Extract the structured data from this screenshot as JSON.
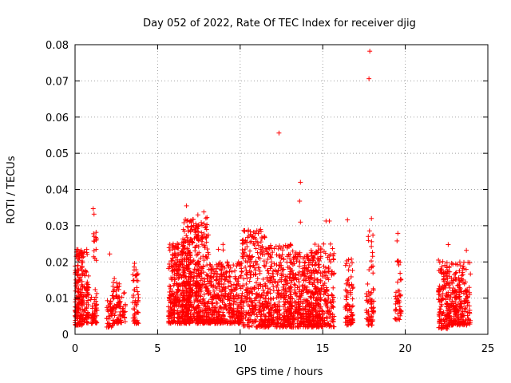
{
  "chart_data": {
    "type": "scatter",
    "title": "Day 052 of 2022, Rate Of TEC Index for receiver djig",
    "xlabel": "GPS time / hours",
    "ylabel": "ROTI / TECUs",
    "xlim": [
      0,
      25
    ],
    "ylim": [
      0,
      0.08
    ],
    "xticks": [
      "0",
      "5",
      "10",
      "15",
      "20",
      "25"
    ],
    "yticks": [
      "0",
      "0.01",
      "0.02",
      "0.03",
      "0.04",
      "0.05",
      "0.06",
      "0.07",
      "0.08"
    ],
    "grid": true,
    "marker": "+",
    "colors": {
      "series": "#ff0000",
      "grid": "#a0a0a0"
    },
    "outliers": [
      {
        "x": 17.85,
        "y": 0.0782
      },
      {
        "x": 17.8,
        "y": 0.0706
      },
      {
        "x": 12.35,
        "y": 0.0556
      },
      {
        "x": 13.65,
        "y": 0.042
      },
      {
        "x": 13.6,
        "y": 0.0368
      },
      {
        "x": 13.65,
        "y": 0.031
      },
      {
        "x": 6.75,
        "y": 0.0355
      },
      {
        "x": 1.1,
        "y": 0.0347
      },
      {
        "x": 1.15,
        "y": 0.0332
      },
      {
        "x": 7.8,
        "y": 0.0338
      },
      {
        "x": 16.5,
        "y": 0.0316
      },
      {
        "x": 15.2,
        "y": 0.0313
      },
      {
        "x": 15.4,
        "y": 0.0313
      },
      {
        "x": 17.95,
        "y": 0.032
      },
      {
        "x": 10.5,
        "y": 0.0288
      },
      {
        "x": 19.55,
        "y": 0.0279
      },
      {
        "x": 19.5,
        "y": 0.0258
      },
      {
        "x": 22.6,
        "y": 0.0248
      },
      {
        "x": 1.3,
        "y": 0.0264
      },
      {
        "x": 7.3,
        "y": 0.0293
      },
      {
        "x": 3.6,
        "y": 0.0196
      },
      {
        "x": 2.1,
        "y": 0.0222
      },
      {
        "x": 23.7,
        "y": 0.0232
      }
    ],
    "clusters": [
      {
        "x0": 0.0,
        "x1": 0.45,
        "ymin": 0.0025,
        "ymax": 0.0235,
        "n": 150
      },
      {
        "x0": 0.4,
        "x1": 0.8,
        "ymin": 0.003,
        "ymax": 0.0235,
        "n": 60
      },
      {
        "x0": 0.6,
        "x1": 0.85,
        "ymin": 0.0045,
        "ymax": 0.0185,
        "n": 25
      },
      {
        "x0": 0.95,
        "x1": 1.35,
        "ymin": 0.003,
        "ymax": 0.0125,
        "n": 45
      },
      {
        "x0": 1.05,
        "x1": 1.3,
        "ymin": 0.02,
        "ymax": 0.029,
        "n": 12
      },
      {
        "x0": 1.9,
        "x1": 2.35,
        "ymin": 0.002,
        "ymax": 0.0115,
        "n": 45
      },
      {
        "x0": 2.3,
        "x1": 2.7,
        "ymin": 0.003,
        "ymax": 0.016,
        "n": 45
      },
      {
        "x0": 2.6,
        "x1": 3.05,
        "ymin": 0.003,
        "ymax": 0.012,
        "n": 40
      },
      {
        "x0": 3.5,
        "x1": 3.85,
        "ymin": 0.003,
        "ymax": 0.019,
        "n": 50
      },
      {
        "x0": 5.65,
        "x1": 7.0,
        "ymin": 0.003,
        "ymax": 0.0255,
        "n": 380
      },
      {
        "x0": 6.5,
        "x1": 7.5,
        "ymin": 0.0035,
        "ymax": 0.032,
        "n": 220
      },
      {
        "x0": 7.3,
        "x1": 8.1,
        "ymin": 0.003,
        "ymax": 0.033,
        "n": 200
      },
      {
        "x0": 8.0,
        "x1": 10.1,
        "ymin": 0.003,
        "ymax": 0.02,
        "n": 380
      },
      {
        "x0": 8.6,
        "x1": 9.0,
        "ymin": 0.004,
        "ymax": 0.025,
        "n": 25
      },
      {
        "x0": 10.1,
        "x1": 11.5,
        "ymin": 0.002,
        "ymax": 0.029,
        "n": 280
      },
      {
        "x0": 11.5,
        "x1": 13.1,
        "ymin": 0.002,
        "ymax": 0.025,
        "n": 330
      },
      {
        "x0": 13.0,
        "x1": 14.9,
        "ymin": 0.002,
        "ymax": 0.023,
        "n": 380
      },
      {
        "x0": 14.1,
        "x1": 15.7,
        "ymin": 0.002,
        "ymax": 0.025,
        "n": 240
      },
      {
        "x0": 16.35,
        "x1": 16.85,
        "ymin": 0.0025,
        "ymax": 0.021,
        "n": 75
      },
      {
        "x0": 17.6,
        "x1": 18.1,
        "ymin": 0.0025,
        "ymax": 0.014,
        "n": 55
      },
      {
        "x0": 17.75,
        "x1": 18.05,
        "ymin": 0.015,
        "ymax": 0.029,
        "n": 14
      },
      {
        "x0": 19.35,
        "x1": 19.75,
        "ymin": 0.004,
        "ymax": 0.0125,
        "n": 35
      },
      {
        "x0": 19.45,
        "x1": 19.75,
        "ymin": 0.014,
        "ymax": 0.021,
        "n": 10
      },
      {
        "x0": 22.0,
        "x1": 22.6,
        "ymin": 0.0015,
        "ymax": 0.0215,
        "n": 120
      },
      {
        "x0": 22.5,
        "x1": 23.3,
        "ymin": 0.0025,
        "ymax": 0.02,
        "n": 160
      },
      {
        "x0": 23.25,
        "x1": 23.95,
        "ymin": 0.0025,
        "ymax": 0.0205,
        "n": 110
      }
    ]
  }
}
